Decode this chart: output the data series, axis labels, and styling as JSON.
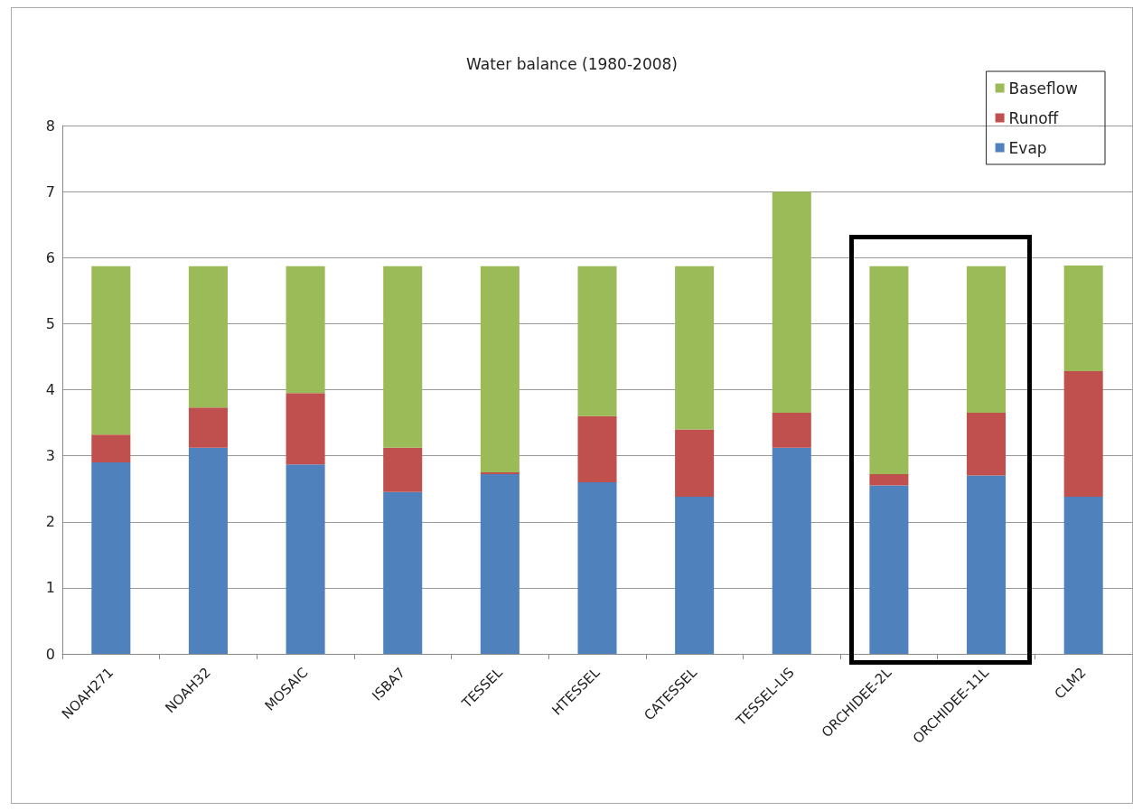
{
  "chart_data": {
    "type": "bar",
    "title": "Water balance (1980-2008)",
    "stacked": true,
    "categories": [
      "NOAH271",
      "NOAH32",
      "MOSAIC",
      "ISBA7",
      "TESSEL",
      "HTESSEL",
      "CATESSEL",
      "TESSEL-LIS",
      "ORCHIDEE-2L",
      "ORCHIDEE-11L",
      "CLM2"
    ],
    "series": [
      {
        "name": "Evap",
        "color": "#4f81bd",
        "values": [
          2.9,
          3.12,
          2.87,
          2.45,
          2.72,
          2.6,
          2.38,
          3.12,
          2.55,
          2.7,
          2.38
        ]
      },
      {
        "name": "Runoff",
        "color": "#c0504d",
        "values": [
          0.42,
          0.61,
          1.08,
          0.67,
          0.03,
          1.0,
          1.02,
          0.53,
          0.17,
          0.95,
          1.9
        ]
      },
      {
        "name": "Baseflow",
        "color": "#9bbb59",
        "values": [
          2.55,
          2.14,
          1.92,
          2.75,
          3.12,
          2.27,
          2.47,
          3.35,
          3.15,
          2.22,
          1.6
        ]
      }
    ],
    "ylim": [
      0,
      8
    ],
    "yticks": [
      0,
      1,
      2,
      3,
      4,
      5,
      6,
      7,
      8
    ],
    "grid": "y",
    "legend": "top right"
  }
}
